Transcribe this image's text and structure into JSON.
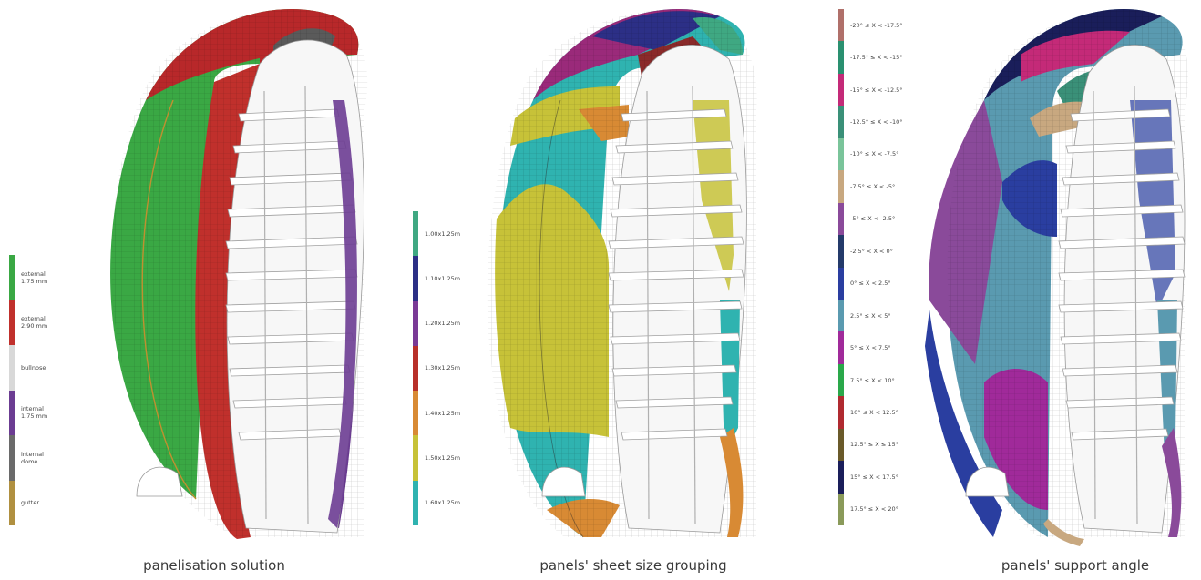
{
  "panels": [
    {
      "caption": "panelisation solution",
      "legend": [
        {
          "label": "external\n1.75 mm",
          "color": "#3aa844"
        },
        {
          "label": "external\n2.90 mm",
          "color": "#c0302c"
        },
        {
          "label": "bullnose",
          "color": "#d8d8d8"
        },
        {
          "label": "internal\n1.75 mm",
          "color": "#6b3c92"
        },
        {
          "label": "internal\ndome",
          "color": "#6a6a6a"
        },
        {
          "label": "gutter",
          "color": "#b09040"
        }
      ]
    },
    {
      "caption": "panels' sheet size grouping",
      "legend": [
        {
          "label": "1.00x1.25m",
          "color": "#3fa882"
        },
        {
          "label": "1.10x1.25m",
          "color": "#2c2f86"
        },
        {
          "label": "1.20x1.25m",
          "color": "#7a3a96"
        },
        {
          "label": "1.30x1.25m",
          "color": "#b8302a"
        },
        {
          "label": "1.40x1.25m",
          "color": "#d88a34"
        },
        {
          "label": "1.50x1.25m",
          "color": "#c7c238"
        },
        {
          "label": "1.60x1.25m",
          "color": "#2fb3b0"
        }
      ]
    },
    {
      "caption": "panels' support angle",
      "legend": [
        {
          "label": "-20° ≤ X < -17.5°",
          "color": "#b0706a"
        },
        {
          "label": "-17.5° ≤ X < -15°",
          "color": "#2a9070"
        },
        {
          "label": "-15° ≤ X < -12.5°",
          "color": "#c42a78"
        },
        {
          "label": "-12.5° ≤ X < -10°",
          "color": "#3a9078"
        },
        {
          "label": "-10° ≤ X < -7.5°",
          "color": "#7ac49a"
        },
        {
          "label": "-7.5° ≤ X < -5°",
          "color": "#c8a880"
        },
        {
          "label": "-5° ≤ X < -2.5°",
          "color": "#8a4a9a"
        },
        {
          "label": "-2.5° < X < 0°",
          "color": "#243a6a"
        },
        {
          "label": "0° ≤ X < 2.5°",
          "color": "#2a3ea0"
        },
        {
          "label": "2.5° ≤ X < 5°",
          "color": "#5a9ab0"
        },
        {
          "label": "5° ≤ X < 7.5°",
          "color": "#a02a9a"
        },
        {
          "label": "7.5° ≤ X < 10°",
          "color": "#2aa84a"
        },
        {
          "label": "10° ≤ X < 12.5°",
          "color": "#b02a30"
        },
        {
          "label": "12.5° ≤ X ≤ 15°",
          "color": "#6a5a2a"
        },
        {
          "label": "15° ≤ X < 17.5°",
          "color": "#1a1e5a"
        },
        {
          "label": "17.5° ≤ X < 20°",
          "color": "#8a9a5a"
        }
      ]
    }
  ]
}
